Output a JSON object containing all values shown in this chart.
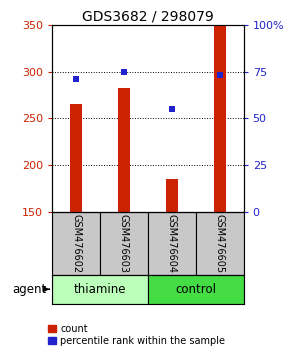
{
  "title": "GDS3682 / 298079",
  "samples": [
    "GSM476602",
    "GSM476603",
    "GSM476604",
    "GSM476605"
  ],
  "count_values": [
    265,
    282,
    185,
    350
  ],
  "percentile_values": [
    71,
    75,
    55,
    73
  ],
  "ylim_left": [
    150,
    350
  ],
  "ylim_right": [
    0,
    100
  ],
  "yticks_left": [
    150,
    200,
    250,
    300,
    350
  ],
  "yticks_right": [
    0,
    25,
    50,
    75,
    100
  ],
  "ytick_labels_right": [
    "0",
    "25",
    "50",
    "75",
    "100%"
  ],
  "bar_color": "#cc2200",
  "dot_color": "#2222cc",
  "sample_box_color": "#c8c8c8",
  "thiamine_color": "#bbffbb",
  "control_color": "#44dd44",
  "agent_label": "agent",
  "legend_count_label": "count",
  "legend_pct_label": "percentile rank within the sample",
  "bar_width": 0.25,
  "grid_yticks": [
    200,
    250,
    300
  ]
}
